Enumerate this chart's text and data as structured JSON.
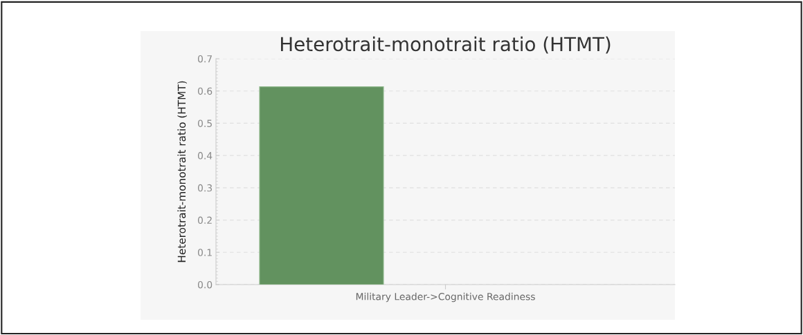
{
  "chart_data": {
    "type": "bar",
    "title": "Heterotrait-monotrait ratio (HTMT)",
    "ylabel": "Heterotrait-monotrait ratio (HTMT)",
    "categories": [
      "Military Leader->Cognitive Readiness"
    ],
    "series": [
      {
        "color": "#62925f",
        "values": [
          0.613
        ]
      }
    ],
    "ylim": [
      0,
      0.7
    ],
    "yticks": [
      {
        "value": 0,
        "label": "0.0"
      },
      {
        "value": 0.1,
        "label": "0.1"
      },
      {
        "value": 0.2,
        "label": "0.2"
      },
      {
        "value": 0.3,
        "label": "0.3"
      },
      {
        "value": 0.4,
        "label": "0.4"
      },
      {
        "value": 0.5,
        "label": "0.5"
      },
      {
        "value": 0.6,
        "label": "0.6"
      },
      {
        "value": 0.7,
        "label": "0.7"
      }
    ],
    "grid": "y"
  }
}
